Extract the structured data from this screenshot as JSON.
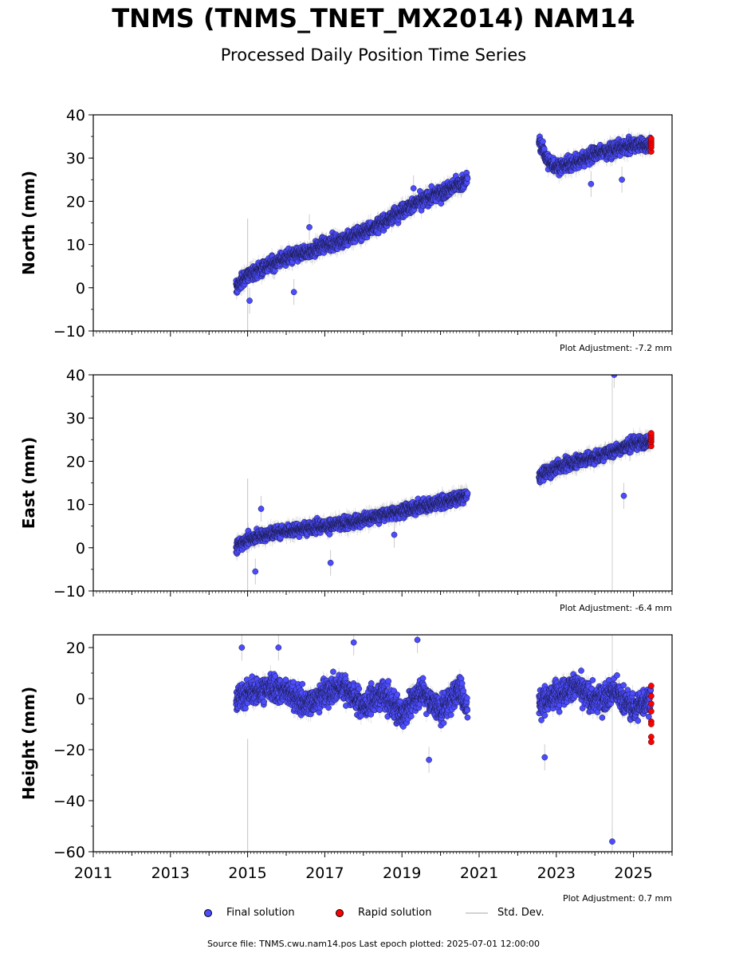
{
  "title": "TNMS (TNMS_TNET_MX2014) NAM14",
  "subtitle": "Processed Daily Position Time Series",
  "legend": {
    "final": "Final solution",
    "rapid": "Rapid solution",
    "std": "Std. Dev."
  },
  "colors": {
    "final": "#4c4cff",
    "rapid": "#ff0000",
    "std": "#cccccc"
  },
  "source_line": "Source file: TNMS.cwu.nam14.pos  Last epoch plotted: 2025-07-01 12:00:00",
  "chart_data": [
    {
      "type": "scatter",
      "ylabel": "North (mm)",
      "ylim": [
        -10,
        40
      ],
      "yticks": [
        -10,
        0,
        10,
        20,
        30,
        40
      ],
      "xlim": [
        2011,
        2026
      ],
      "xticks": [
        2011,
        2013,
        2015,
        2017,
        2019,
        2021,
        2023,
        2025
      ],
      "show_x_tick_labels": false,
      "adjustment": "Plot Adjustment: -7.2 mm",
      "series": [
        {
          "name": "Final solution",
          "segments": [
            {
              "x": [
                2014.7,
                2015.0,
                2015.5,
                2016.0,
                2016.5,
                2017.0,
                2017.5,
                2018.0,
                2018.5,
                2019.0,
                2019.5,
                2020.0,
                2020.5,
                2020.7
              ],
              "y": [
                0,
                3,
                5,
                7,
                8,
                10,
                11,
                13,
                15,
                18,
                20,
                22,
                24,
                25
              ]
            },
            {
              "x": [
                2022.55,
                2022.65,
                2022.8,
                2023.0,
                2023.5,
                2024.0,
                2024.5,
                2025.0,
                2025.45
              ],
              "y": [
                34,
                32,
                29,
                28,
                29,
                31,
                32,
                33,
                33
              ]
            }
          ],
          "scatter": 1.6,
          "outliers": [
            {
              "x": 2015.05,
              "y": -3
            },
            {
              "x": 2016.2,
              "y": -1
            },
            {
              "x": 2016.6,
              "y": 14
            },
            {
              "x": 2019.3,
              "y": 23
            },
            {
              "x": 2023.9,
              "y": 24
            },
            {
              "x": 2024.7,
              "y": 25
            }
          ]
        },
        {
          "name": "Rapid solution",
          "x": [
            2025.46,
            2025.46,
            2025.46,
            2025.46,
            2025.46,
            2025.46
          ],
          "y": [
            31.5,
            32.5,
            33,
            33.5,
            34,
            34.5
          ]
        }
      ]
    },
    {
      "type": "scatter",
      "ylabel": "East (mm)",
      "ylim": [
        -10,
        40
      ],
      "yticks": [
        -10,
        0,
        10,
        20,
        30,
        40
      ],
      "xlim": [
        2011,
        2026
      ],
      "xticks": [
        2011,
        2013,
        2015,
        2017,
        2019,
        2021,
        2023,
        2025
      ],
      "show_x_tick_labels": false,
      "adjustment": "Plot Adjustment: -6.4 mm",
      "series": [
        {
          "name": "Final solution",
          "segments": [
            {
              "x": [
                2014.7,
                2015.0,
                2015.5,
                2016.0,
                2016.5,
                2017.0,
                2017.5,
                2018.0,
                2018.5,
                2019.0,
                2019.5,
                2020.0,
                2020.5,
                2020.7
              ],
              "y": [
                0,
                2,
                3,
                4,
                4.5,
                5,
                5.5,
                6.5,
                7.5,
                8.5,
                9.5,
                10.5,
                11.5,
                12
              ]
            },
            {
              "x": [
                2022.55,
                2023.0,
                2023.5,
                2024.0,
                2024.5,
                2025.0,
                2025.45
              ],
              "y": [
                16.5,
                18.5,
                20,
                21,
                22.5,
                24,
                25
              ]
            }
          ],
          "scatter": 1.4,
          "outliers": [
            {
              "x": 2015.2,
              "y": -5.5
            },
            {
              "x": 2015.35,
              "y": 9
            },
            {
              "x": 2017.15,
              "y": -3.5
            },
            {
              "x": 2018.8,
              "y": 3
            },
            {
              "x": 2024.5,
              "y": 40
            },
            {
              "x": 2024.75,
              "y": 12
            }
          ]
        },
        {
          "name": "Rapid solution",
          "x": [
            2025.46,
            2025.46,
            2025.46,
            2025.46,
            2025.46,
            2025.46
          ],
          "y": [
            23.5,
            24.5,
            25,
            25.5,
            26,
            26.5
          ]
        }
      ]
    },
    {
      "type": "scatter",
      "ylabel": "Height (mm)",
      "ylim": [
        -60,
        25
      ],
      "yticks": [
        -60,
        -40,
        -20,
        0,
        20
      ],
      "xlim": [
        2011,
        2026
      ],
      "xticks": [
        2011,
        2013,
        2015,
        2017,
        2019,
        2021,
        2023,
        2025
      ],
      "xticklabels": [
        "2011",
        "2013",
        "2015",
        "2017",
        "2019",
        "2021",
        "2023",
        "2025"
      ],
      "show_x_tick_labels": true,
      "adjustment": "Plot Adjustment: 0.7 mm",
      "series": [
        {
          "name": "Final solution",
          "segments": [
            {
              "x": [
                2014.7,
                2015.0,
                2015.5,
                2016.0,
                2016.5,
                2017.0,
                2017.5,
                2018.0,
                2018.5,
                2019.0,
                2019.5,
                2020.0,
                2020.5,
                2020.7
              ],
              "y": [
                0,
                2,
                4,
                3,
                -2,
                2,
                5,
                -3,
                2,
                -6,
                3,
                -5,
                4,
                -5
              ]
            },
            {
              "x": [
                2022.55,
                2023.0,
                2023.5,
                2024.0,
                2024.5,
                2025.0,
                2025.45
              ],
              "y": [
                -2,
                2,
                5,
                -1,
                3,
                -4,
                0
              ]
            }
          ],
          "scatter": 5,
          "outliers": [
            {
              "x": 2014.85,
              "y": 20
            },
            {
              "x": 2015.8,
              "y": 20
            },
            {
              "x": 2017.75,
              "y": 22
            },
            {
              "x": 2019.4,
              "y": 23
            },
            {
              "x": 2019.7,
              "y": -24
            },
            {
              "x": 2024.45,
              "y": -56
            },
            {
              "x": 2022.7,
              "y": -23
            }
          ]
        },
        {
          "name": "Rapid solution",
          "x": [
            2025.46,
            2025.46,
            2025.46,
            2025.46,
            2025.46,
            2025.46,
            2025.46,
            2025.46
          ],
          "y": [
            5,
            1,
            -2,
            -5,
            -9,
            -10,
            -15,
            -17
          ]
        }
      ]
    }
  ]
}
